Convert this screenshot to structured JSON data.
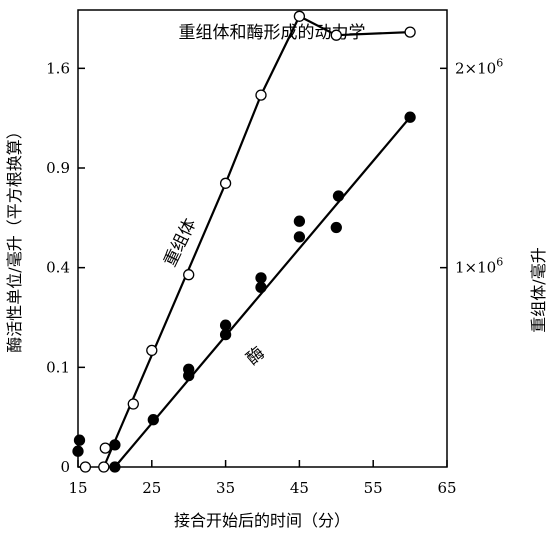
{
  "chart_data": {
    "type": "scatter",
    "title": "重组体和酶形成的动力学",
    "xlabel": "接合开始后的时间（分）",
    "ylabel_left": "酶活性单位/毫升（平方根换算）",
    "ylabel_right": "重组体/毫升",
    "x_ticks": [
      15,
      25,
      35,
      45,
      55,
      65
    ],
    "xlim": [
      15,
      65
    ],
    "ylim_sqrt": [
      0,
      1.45
    ],
    "y_ticks_left": [
      {
        "label": "0",
        "sqrt": 0.0
      },
      {
        "label": "0.1",
        "sqrt": 0.3162
      },
      {
        "label": "0.4",
        "sqrt": 0.6325
      },
      {
        "label": "0.9",
        "sqrt": 0.9487
      },
      {
        "label": "1.6",
        "sqrt": 1.2649
      }
    ],
    "y_ticks_right": [
      {
        "label": "1×10",
        "exp": "6",
        "sqrt": 0.6325
      },
      {
        "label": "2×10",
        "exp": "6",
        "sqrt": 1.2649
      }
    ],
    "series": [
      {
        "name": "重组体",
        "marker": "open-circle",
        "points": [
          [
            16,
            0
          ],
          [
            18.5,
            0
          ],
          [
            18.7,
            0.06
          ],
          [
            22.5,
            0.2
          ],
          [
            25,
            0.37
          ],
          [
            30,
            0.61
          ],
          [
            35,
            0.9
          ],
          [
            39.8,
            1.18
          ],
          [
            45,
            1.43
          ],
          [
            50,
            1.37
          ],
          [
            60,
            1.38
          ]
        ],
        "line": [
          [
            18.5,
            0
          ],
          [
            35,
            0.9
          ],
          [
            39.8,
            1.18
          ],
          [
            45,
            1.43
          ],
          [
            50,
            1.37
          ],
          [
            60,
            1.38
          ]
        ]
      },
      {
        "name": "酶",
        "marker": "filled-circle",
        "points": [
          [
            15,
            0.05
          ],
          [
            15.2,
            0.085
          ],
          [
            20,
            0
          ],
          [
            20,
            0.07
          ],
          [
            25.2,
            0.15
          ],
          [
            30,
            0.29
          ],
          [
            30,
            0.31
          ],
          [
            35,
            0.42
          ],
          [
            35,
            0.45
          ],
          [
            39.8,
            0.57
          ],
          [
            39.8,
            0.6
          ],
          [
            45,
            0.73
          ],
          [
            45,
            0.78
          ],
          [
            50,
            0.76
          ],
          [
            50.3,
            0.86
          ],
          [
            60,
            1.11
          ]
        ],
        "line": [
          [
            20,
            0
          ],
          [
            60,
            1.11
          ]
        ]
      }
    ],
    "annotations": [
      {
        "text": "重组体",
        "series": "重组体"
      },
      {
        "text": "酶",
        "series": "酶"
      }
    ]
  }
}
